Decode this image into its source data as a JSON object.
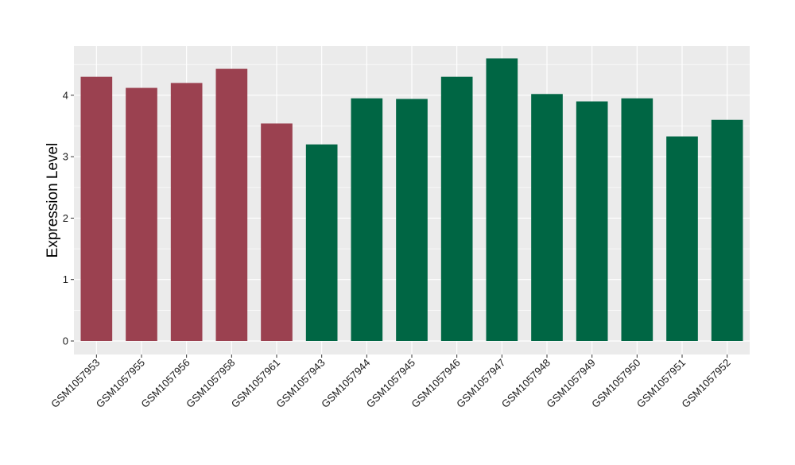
{
  "chart_data": {
    "type": "bar",
    "ylabel": "Expression Level",
    "xlabel": "",
    "ylim": [
      -0.22,
      4.8
    ],
    "yticks": [
      0,
      1,
      2,
      3,
      4
    ],
    "grid": true,
    "legend": "none",
    "colors": {
      "group_a": "#9b4150",
      "group_b": "#006644",
      "panel_background": "#ebebeb",
      "grid_major": "#ffffff"
    },
    "categories": [
      "GSM1057953",
      "GSM1057955",
      "GSM1057956",
      "GSM1057958",
      "GSM1057961",
      "GSM1057943",
      "GSM1057944",
      "GSM1057945",
      "GSM1057946",
      "GSM1057947",
      "GSM1057948",
      "GSM1057949",
      "GSM1057950",
      "GSM1057951",
      "GSM1057952"
    ],
    "values": [
      4.3,
      4.12,
      4.2,
      4.43,
      3.54,
      3.2,
      3.95,
      3.94,
      4.3,
      4.6,
      4.02,
      3.9,
      3.95,
      3.33,
      3.6
    ],
    "groups": [
      "group_a",
      "group_a",
      "group_a",
      "group_a",
      "group_a",
      "group_b",
      "group_b",
      "group_b",
      "group_b",
      "group_b",
      "group_b",
      "group_b",
      "group_b",
      "group_b",
      "group_b"
    ]
  }
}
